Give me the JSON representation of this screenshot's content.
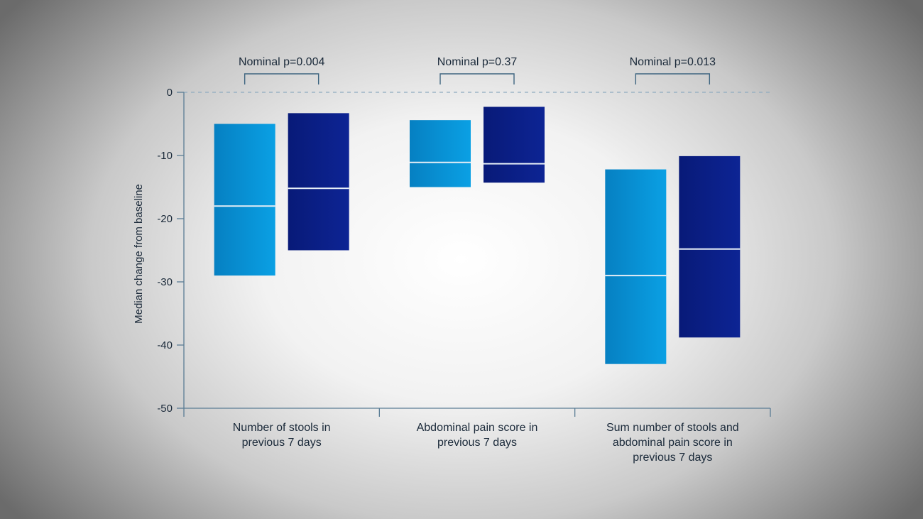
{
  "chart_data": {
    "type": "bar",
    "ylabel": "Median change from baseline",
    "ylim": [
      -50,
      0
    ],
    "yticks": [
      0,
      -10,
      -20,
      -30,
      -40,
      -50
    ],
    "categories": [
      [
        "Number of stools in",
        "previous 7 days"
      ],
      [
        "Abdominal pain score in",
        "previous 7 days"
      ],
      [
        "Sum number of stools and",
        "abdominal pain score in",
        "previous 7 days"
      ]
    ],
    "pvalues": [
      "Nominal p=0.004",
      "Nominal p=0.37",
      "Nominal p=0.013"
    ],
    "series": [
      {
        "color": "#0a8fd0",
        "low": [
          -29,
          -15,
          -43
        ],
        "high": [
          -5,
          -4.4,
          -12.2
        ],
        "median": [
          -18,
          -11.1,
          -29
        ]
      },
      {
        "color": "#0a1f88",
        "low": [
          -25,
          -14.3,
          -38.8
        ],
        "high": [
          -3.3,
          -2.3,
          -10.1
        ],
        "median": [
          -15.2,
          -11.3,
          -24.8
        ]
      }
    ],
    "grid": false
  }
}
